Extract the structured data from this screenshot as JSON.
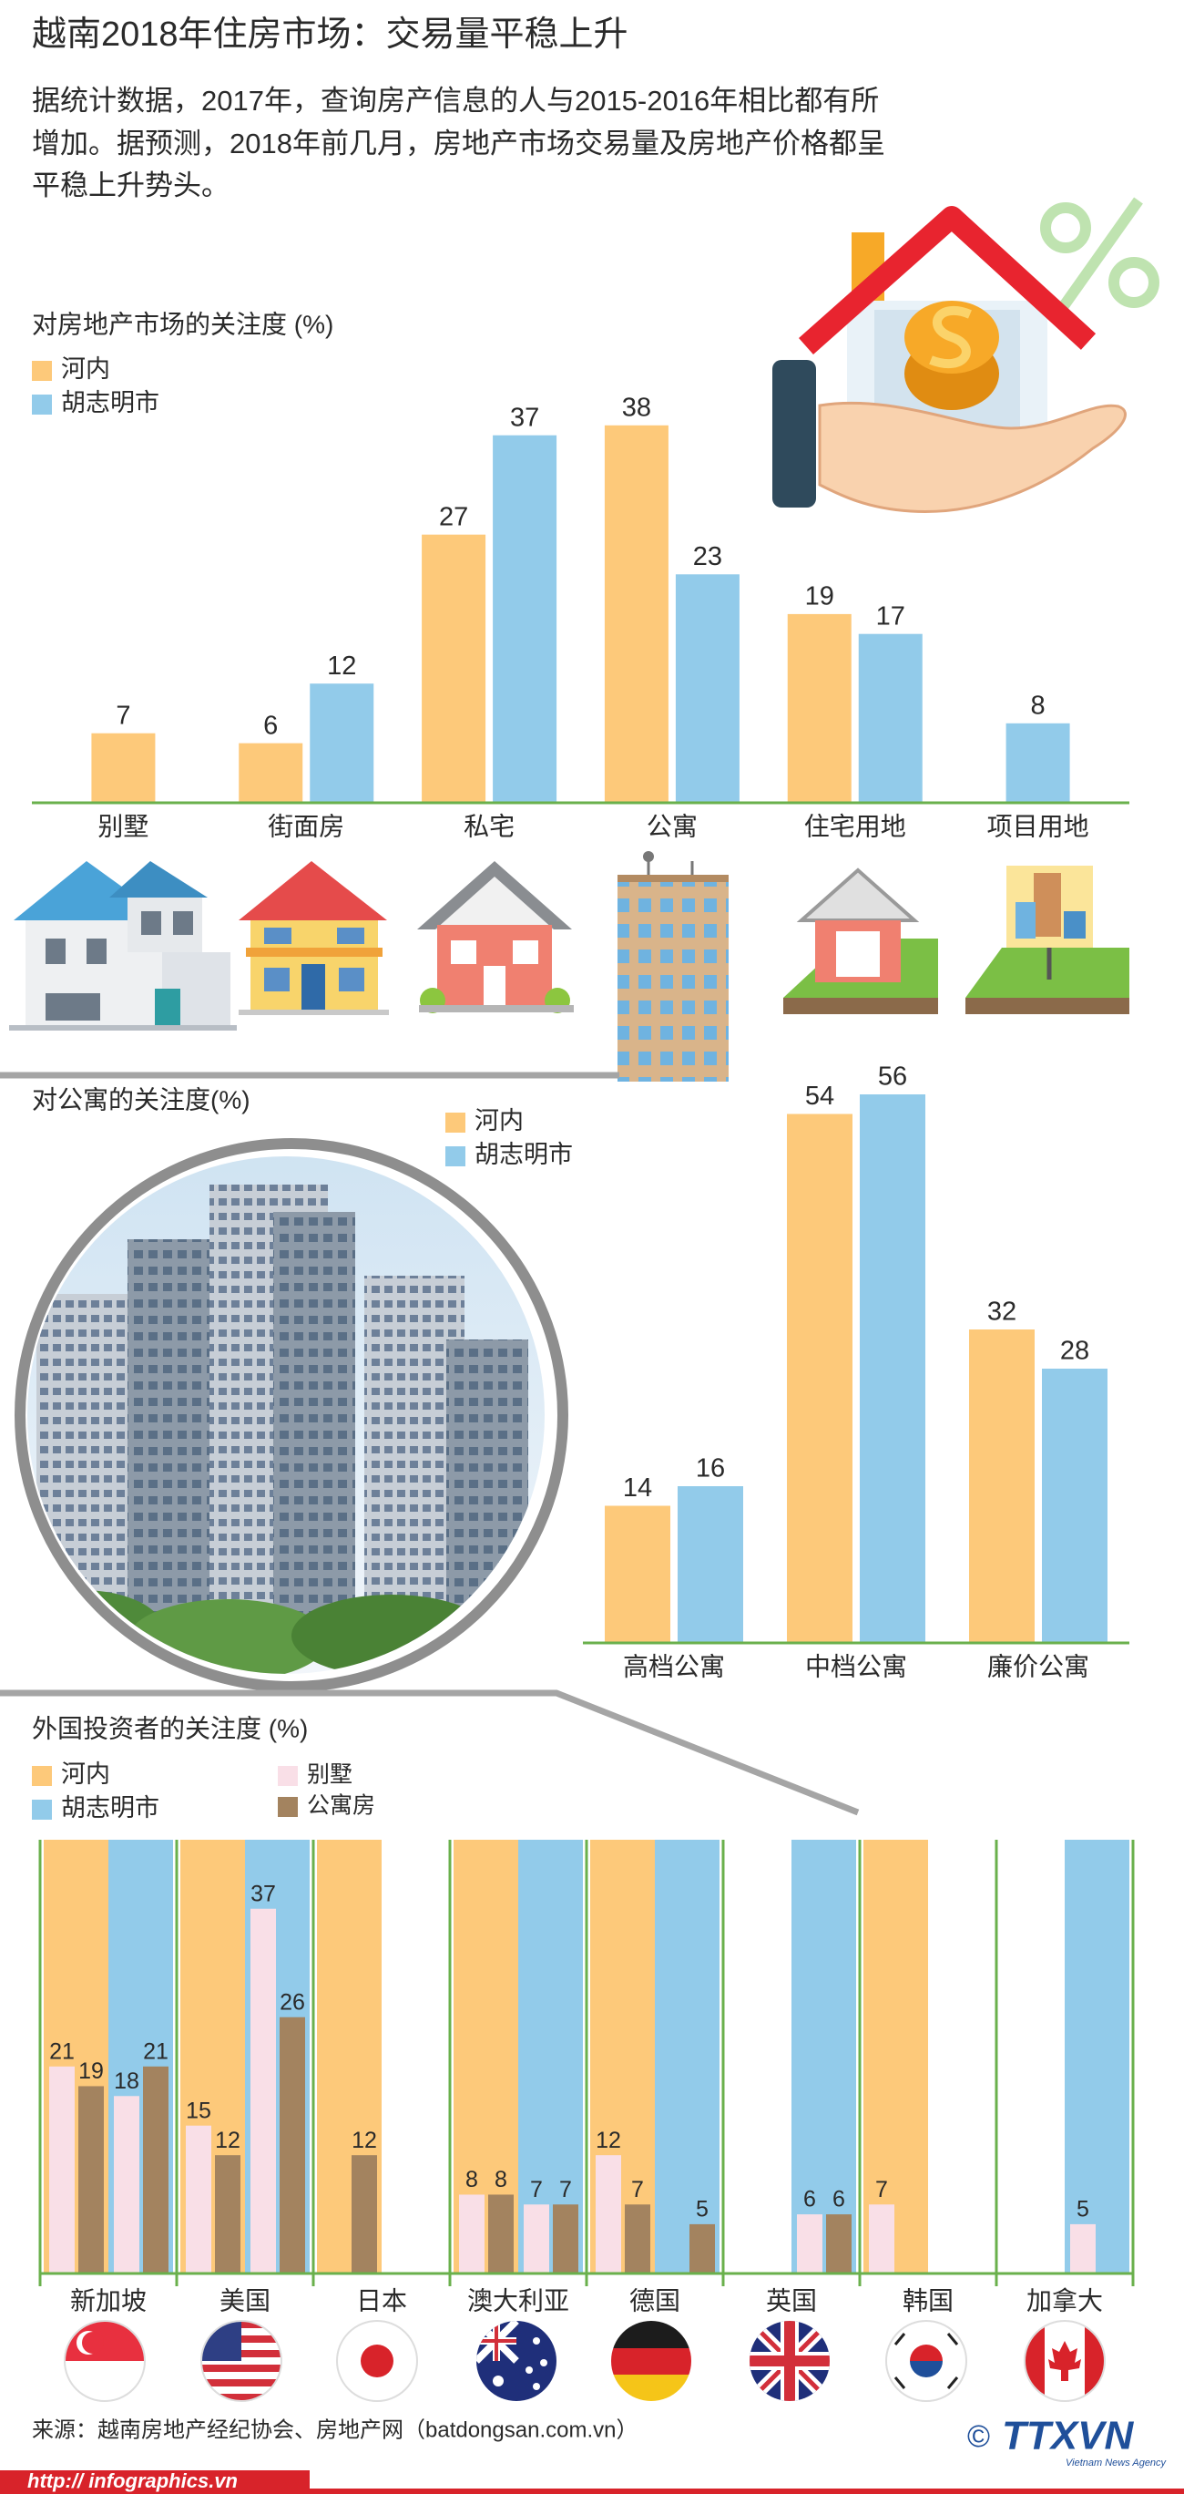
{
  "header": {
    "title": "越南2018年住房市场：交易量平稳上升",
    "intro": [
      "据统计数据，2017年，查询房产信息的人与2015-2016年相比都有所",
      "增加。据预测，2018年前几月，房地产市场交易量及房地产价格都呈",
      "平稳上升势头。"
    ]
  },
  "chart_data": [
    {
      "type": "bar",
      "title": "对房地产市场的关注度 (%)",
      "categories": [
        "别墅",
        "街面房",
        "私宅",
        "公寓",
        "住宅用地",
        "项目用地"
      ],
      "series": [
        {
          "name": "河内",
          "color": "#fdc97a",
          "values": [
            7,
            6,
            27,
            38,
            19,
            null
          ]
        },
        {
          "name": "胡志明市",
          "color": "#92cbea",
          "values": [
            null,
            12,
            37,
            23,
            17,
            8
          ]
        }
      ],
      "ylim": [
        0,
        40
      ]
    },
    {
      "type": "bar",
      "title": "对公寓的关注度(%)",
      "categories": [
        "高档公寓",
        "中档公寓",
        "廉价公寓"
      ],
      "series": [
        {
          "name": "河内",
          "color": "#fdc97a",
          "values": [
            14,
            54,
            32
          ]
        },
        {
          "name": "胡志明市",
          "color": "#92cbea",
          "values": [
            16,
            56,
            28
          ]
        }
      ],
      "ylim": [
        0,
        60
      ]
    },
    {
      "type": "grouped",
      "title": "外国投资者的关注度 (%)",
      "categories": [
        "新加坡",
        "美国",
        "日本",
        "澳大利亚",
        "德国",
        "英国",
        "韩国",
        "加拿大"
      ],
      "cities": [
        {
          "name": "河内",
          "color": "#fdc97a"
        },
        {
          "name": "胡志明市",
          "color": "#92cbea"
        }
      ],
      "series": [
        {
          "name": "别墅",
          "color": "#f9dfe7",
          "values": [
            [
              21,
              18
            ],
            [
              15,
              37
            ],
            [
              null,
              null
            ],
            [
              8,
              7
            ],
            [
              12,
              null
            ],
            [
              null,
              6
            ],
            [
              7,
              null
            ],
            [
              null,
              5
            ]
          ]
        },
        {
          "name": "公寓房",
          "color": "#a3835f",
          "values": [
            [
              19,
              21
            ],
            [
              12,
              26
            ],
            [
              12,
              null
            ],
            [
              8,
              7
            ],
            [
              7,
              5
            ],
            [
              null,
              6
            ],
            [
              null,
              null
            ],
            [
              null,
              null
            ]
          ]
        }
      ],
      "ylim": [
        0,
        44
      ]
    }
  ],
  "footer": {
    "source": "来源：越南房地产经纪协会、房地产网（batdongsan.com.vn）",
    "url": "http:// infographics.vn",
    "copyright": "©",
    "logo": "TTXVN",
    "agency": "Vietnam News Agency"
  }
}
